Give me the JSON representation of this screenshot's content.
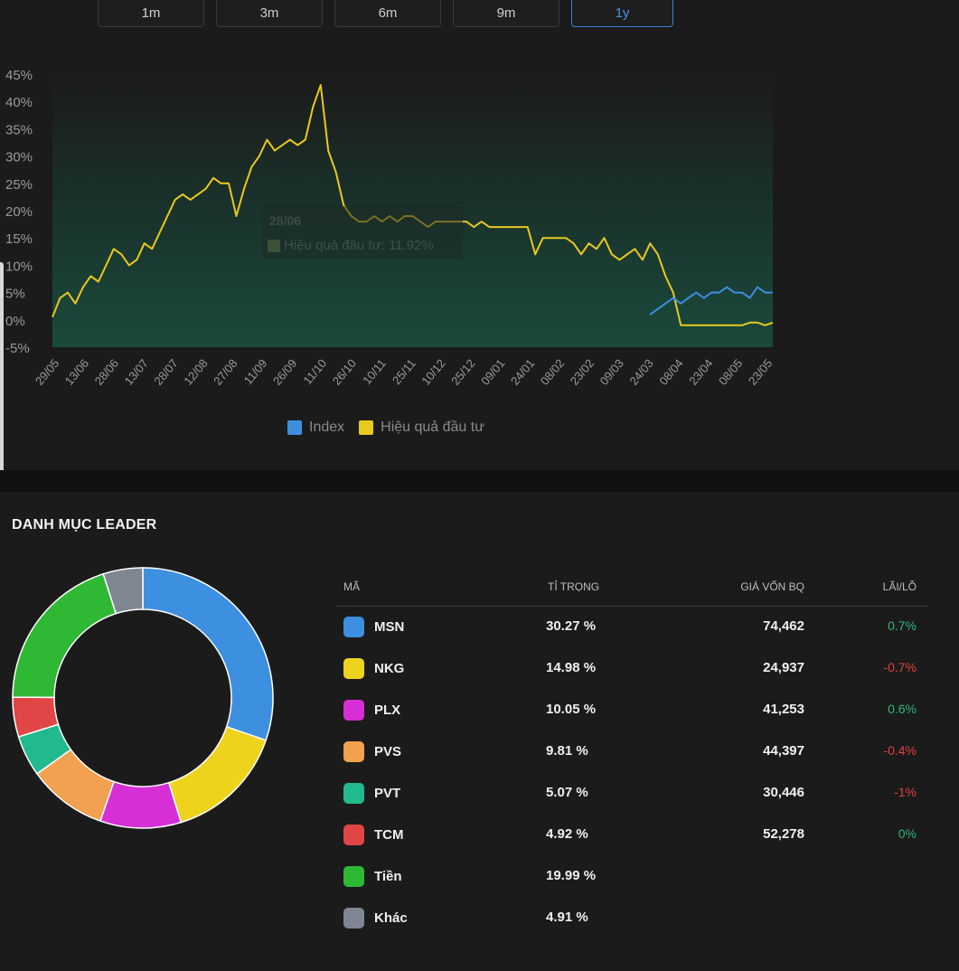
{
  "range_tabs": [
    {
      "label": "1m",
      "active": false
    },
    {
      "label": "3m",
      "active": false
    },
    {
      "label": "6m",
      "active": false
    },
    {
      "label": "9m",
      "active": false
    },
    {
      "label": "1y",
      "active": true
    }
  ],
  "tooltip": {
    "date": "28/06",
    "label": "Hiệu quả đầu tư: 11.92%"
  },
  "legend": [
    {
      "name": "Index",
      "color": "#3d8fe0"
    },
    {
      "name": "Hiệu quả đầu tư",
      "color": "#e8c91e"
    }
  ],
  "chart_data": {
    "type": "line",
    "ylim": [
      -5,
      45
    ],
    "yticks": [
      "45%",
      "40%",
      "35%",
      "30%",
      "25%",
      "20%",
      "15%",
      "10%",
      "5%",
      "0%",
      "-5%"
    ],
    "xticks": [
      "29/05",
      "13/06",
      "28/06",
      "13/07",
      "28/07",
      "12/08",
      "27/08",
      "11/09",
      "26/09",
      "11/10",
      "26/10",
      "10/11",
      "25/11",
      "10/12",
      "25/12",
      "09/01",
      "24/01",
      "08/02",
      "23/02",
      "09/03",
      "24/03",
      "08/04",
      "23/04",
      "08/05",
      "23/05"
    ],
    "series": [
      {
        "name": "Hiệu quả đầu tư",
        "color": "#e8c91e",
        "values": [
          0.5,
          4,
          5,
          3,
          6,
          8,
          7,
          10,
          13,
          12,
          10,
          11,
          14,
          13,
          16,
          19,
          22,
          23,
          22,
          23,
          24,
          26,
          25,
          25,
          19,
          24,
          28,
          30,
          33,
          31,
          32,
          33,
          32,
          33,
          39,
          43,
          31,
          27,
          21,
          19,
          18,
          18,
          19,
          18,
          19,
          18,
          19,
          19,
          18,
          17,
          18,
          18,
          18,
          18,
          18,
          17,
          18,
          17,
          17,
          17,
          17,
          17,
          17,
          12,
          15,
          15,
          15,
          15,
          14,
          12,
          14,
          13,
          15,
          12,
          11,
          12,
          13,
          11,
          14,
          12,
          8,
          5,
          -1,
          -1,
          -1,
          -1,
          -1,
          -1,
          -1,
          -1,
          -1,
          -0.5,
          -0.5,
          -1,
          -0.5
        ]
      },
      {
        "name": "Index",
        "color": "#3d8fe0",
        "start_index": 78,
        "values": [
          1,
          2,
          3,
          4,
          3,
          4,
          5,
          4,
          5,
          5,
          6,
          5,
          5,
          4,
          6,
          5,
          5
        ]
      }
    ]
  },
  "portfolio": {
    "title": "DANH MỤC LEADER",
    "columns": {
      "code": "MÃ",
      "weight": "TỈ TRỌNG",
      "cost": "GIÁ VỐN BQ",
      "pl": "LÃI/LỖ"
    },
    "rows": [
      {
        "code": "MSN",
        "weight": "30.27 %",
        "weight_value": 30.27,
        "cost": "74,462",
        "pl": "0.7%",
        "pl_sign": "pos",
        "color": "#3d8fe0"
      },
      {
        "code": "NKG",
        "weight": "14.98 %",
        "weight_value": 14.98,
        "cost": "24,937",
        "pl": "-0.7%",
        "pl_sign": "neg",
        "color": "#eed31c"
      },
      {
        "code": "PLX",
        "weight": "10.05 %",
        "weight_value": 10.05,
        "cost": "41,253",
        "pl": "0.6%",
        "pl_sign": "pos",
        "color": "#d62fd6"
      },
      {
        "code": "PVS",
        "weight": "9.81 %",
        "weight_value": 9.81,
        "cost": "44,397",
        "pl": "-0.4%",
        "pl_sign": "neg",
        "color": "#f1a150"
      },
      {
        "code": "PVT",
        "weight": "5.07 %",
        "weight_value": 5.07,
        "cost": "30,446",
        "pl": "-1%",
        "pl_sign": "neg",
        "color": "#22b98f"
      },
      {
        "code": "TCM",
        "weight": "4.92 %",
        "weight_value": 4.92,
        "cost": "52,278",
        "pl": "0%",
        "pl_sign": "zero",
        "color": "#e04646"
      },
      {
        "code": "Tiền",
        "weight": "19.99 %",
        "weight_value": 19.99,
        "cost": "",
        "pl": "",
        "pl_sign": "",
        "color": "#2fb834"
      },
      {
        "code": "Khác",
        "weight": "4.91 %",
        "weight_value": 4.91,
        "cost": "",
        "pl": "",
        "pl_sign": "",
        "color": "#7f8591"
      }
    ]
  }
}
